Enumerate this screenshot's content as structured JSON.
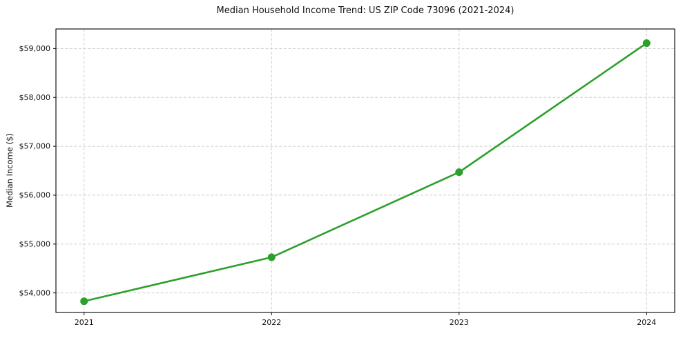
{
  "chart_data": {
    "type": "line",
    "title": "Median Household Income Trend: US ZIP Code 73096 (2021-2024)",
    "xlabel": "",
    "ylabel": "Median Income ($)",
    "x": [
      2021,
      2022,
      2023,
      2024
    ],
    "x_tick_labels": [
      "2021",
      "2022",
      "2023",
      "2024"
    ],
    "series": [
      {
        "name": "Median Household Income",
        "values": [
          53830,
          54730,
          56470,
          59110
        ],
        "color": "#2ca02c",
        "marker": "circle",
        "line_width": 2.6,
        "marker_radius": 5.5
      }
    ],
    "y_ticks": [
      54000,
      55000,
      56000,
      57000,
      58000,
      59000
    ],
    "y_tick_labels": [
      "$54,000",
      "$55,000",
      "$56,000",
      "$57,000",
      "$58,000",
      "$59,000"
    ],
    "xlim": [
      2020.85,
      2024.15
    ],
    "ylim": [
      53600,
      59400
    ],
    "grid": true,
    "grid_style": "dashed",
    "legend_position": "none",
    "colors": {
      "line": "#2ca02c",
      "grid": "#cccccc",
      "axis": "#000000",
      "text": "#111111",
      "background": "#ffffff"
    }
  }
}
